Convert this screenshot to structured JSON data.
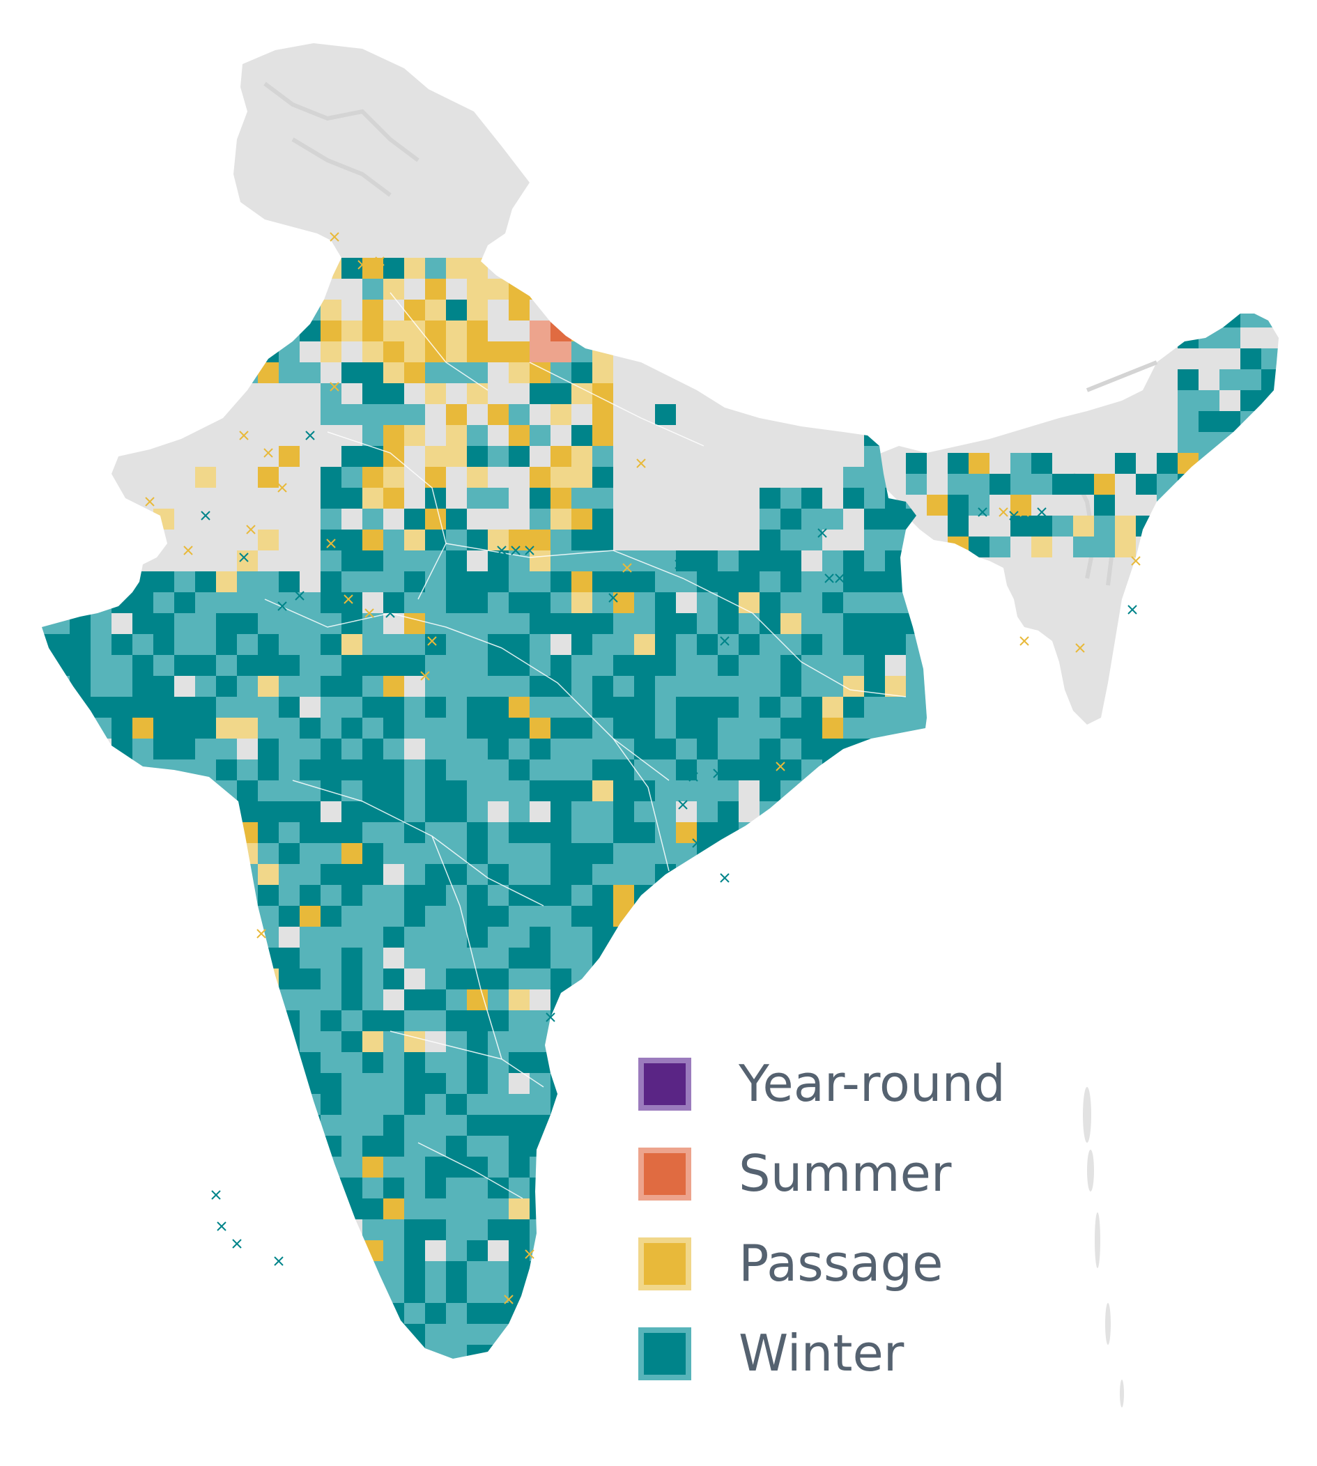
{
  "colors": {
    "background": "#ffffff",
    "land": "#e2e2e2",
    "land_relief": "#d4d4d4",
    "state_border": "#ffffff",
    "winter_core": "#00848a",
    "winter_edge": "#57b4ba",
    "passage_core": "#e8b93a",
    "passage_edge": "#f1d78a",
    "summer_core": "#e06b41",
    "summer_edge": "#eda48d",
    "year_round_core": "#5a2585",
    "year_round_edge": "#9b7bbd",
    "legend_text": "#556270"
  },
  "legend": {
    "items": [
      {
        "key": "year-round",
        "label": "Year-round",
        "core": "#5a2585",
        "edge": "#9b7bbd"
      },
      {
        "key": "summer",
        "label": "Summer",
        "core": "#e06b41",
        "edge": "#eda48d"
      },
      {
        "key": "passage",
        "label": "Passage",
        "core": "#e8b93a",
        "edge": "#f1d78a"
      },
      {
        "key": "winter",
        "label": "Winter",
        "core": "#00848a",
        "edge": "#57b4ba"
      }
    ]
  },
  "marker_icon": "cross-marker-icon"
}
